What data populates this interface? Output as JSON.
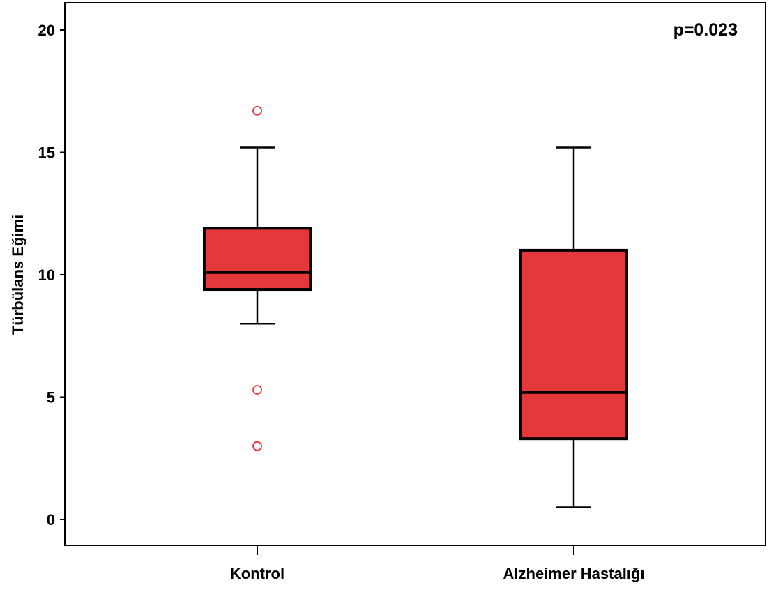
{
  "chart_data": {
    "type": "box",
    "ylabel": "Türbülans Eğimi",
    "xlabel": "",
    "annotation": "p=0.023",
    "ylim": [
      -1,
      21
    ],
    "yticks": [
      0,
      5,
      10,
      15,
      20
    ],
    "grid": false,
    "colors": {
      "box_fill": "#E5383B",
      "box_stroke": "#000000",
      "outlier": "#E5383B",
      "axis": "#000000"
    },
    "categories": [
      "Kontrol",
      "Alzheimer Hastalığı"
    ],
    "boxes": [
      {
        "category": "Kontrol",
        "whisker_low": 8.0,
        "q1": 9.4,
        "median": 10.1,
        "q3": 11.9,
        "whisker_high": 15.2,
        "outliers": [
          16.7,
          5.3,
          3.0
        ]
      },
      {
        "category": "Alzheimer Hastalığı",
        "whisker_low": 0.5,
        "q1": 3.3,
        "median": 5.2,
        "q3": 11.0,
        "whisker_high": 15.2,
        "outliers": []
      }
    ]
  }
}
